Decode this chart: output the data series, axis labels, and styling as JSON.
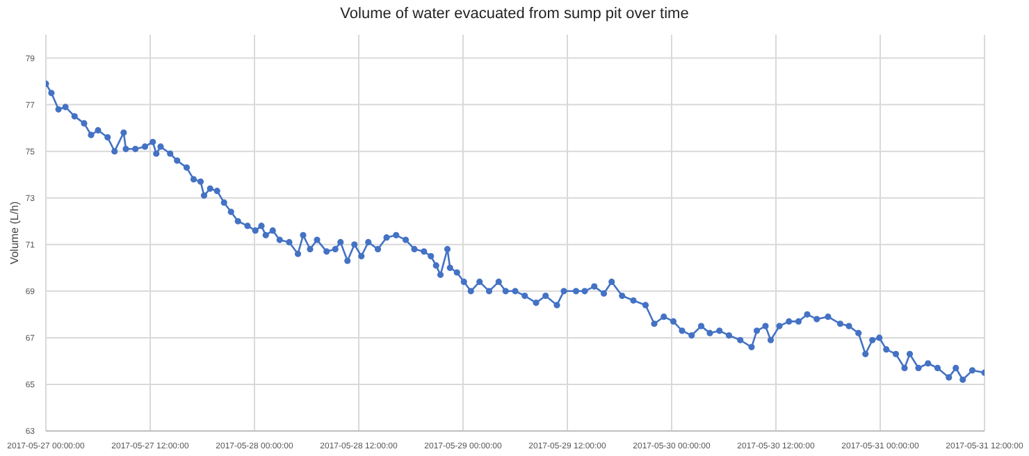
{
  "chart_data": {
    "type": "line",
    "title": "Volume of water evacuated from sump pit over time",
    "ylabel": "Volume (L/h)",
    "x": [
      "2017-05-27T00:00",
      "2017-05-27T00:38",
      "2017-05-27T01:27",
      "2017-05-27T02:15",
      "2017-05-27T03:18",
      "2017-05-27T04:24",
      "2017-05-27T05:12",
      "2017-05-27T06:00",
      "2017-05-27T07:06",
      "2017-05-27T07:54",
      "2017-05-27T08:57",
      "2017-05-27T09:12",
      "2017-05-27T10:18",
      "2017-05-27T11:24",
      "2017-05-27T12:18",
      "2017-05-27T12:42",
      "2017-05-27T13:12",
      "2017-05-27T14:18",
      "2017-05-27T15:06",
      "2017-05-27T16:12",
      "2017-05-27T17:00",
      "2017-05-27T17:48",
      "2017-05-27T18:12",
      "2017-05-27T18:54",
      "2017-05-27T19:42",
      "2017-05-27T20:30",
      "2017-05-27T21:18",
      "2017-05-27T22:06",
      "2017-05-27T23:12",
      "2017-05-28T00:06",
      "2017-05-28T00:48",
      "2017-05-28T01:18",
      "2017-05-28T02:06",
      "2017-05-28T02:54",
      "2017-05-28T04:00",
      "2017-05-28T05:00",
      "2017-05-28T05:36",
      "2017-05-28T06:24",
      "2017-05-28T07:12",
      "2017-05-28T08:18",
      "2017-05-28T09:18",
      "2017-05-28T09:54",
      "2017-05-28T10:42",
      "2017-05-28T11:30",
      "2017-05-28T12:18",
      "2017-05-28T13:06",
      "2017-05-28T14:12",
      "2017-05-28T15:12",
      "2017-05-28T16:18",
      "2017-05-28T17:24",
      "2017-05-28T18:24",
      "2017-05-28T19:30",
      "2017-05-28T20:18",
      "2017-05-28T20:54",
      "2017-05-28T21:24",
      "2017-05-28T22:12",
      "2017-05-28T22:30",
      "2017-05-28T23:18",
      "2017-05-29T00:06",
      "2017-05-29T00:54",
      "2017-05-29T01:54",
      "2017-05-29T03:00",
      "2017-05-29T04:06",
      "2017-05-29T04:54",
      "2017-05-29T06:00",
      "2017-05-29T07:06",
      "2017-05-29T08:24",
      "2017-05-29T09:30",
      "2017-05-29T10:48",
      "2017-05-29T11:36",
      "2017-05-29T13:00",
      "2017-05-29T14:00",
      "2017-05-29T15:06",
      "2017-05-29T16:12",
      "2017-05-29T17:06",
      "2017-05-29T18:18",
      "2017-05-29T19:36",
      "2017-05-29T21:00",
      "2017-05-29T22:00",
      "2017-05-29T23:06",
      "2017-05-30T00:12",
      "2017-05-30T01:12",
      "2017-05-30T02:18",
      "2017-05-30T03:24",
      "2017-05-30T04:24",
      "2017-05-30T05:30",
      "2017-05-30T06:36",
      "2017-05-30T07:54",
      "2017-05-30T09:12",
      "2017-05-30T09:48",
      "2017-05-30T10:48",
      "2017-05-30T11:24",
      "2017-05-30T12:24",
      "2017-05-30T13:30",
      "2017-05-30T14:36",
      "2017-05-30T15:36",
      "2017-05-30T16:42",
      "2017-05-30T18:00",
      "2017-05-30T19:24",
      "2017-05-30T20:24",
      "2017-05-30T21:30",
      "2017-05-30T22:18",
      "2017-05-30T23:06",
      "2017-05-30T23:54",
      "2017-05-31T00:42",
      "2017-05-31T01:48",
      "2017-05-31T02:48",
      "2017-05-31T03:24",
      "2017-05-31T04:24",
      "2017-05-31T05:30",
      "2017-05-31T06:36",
      "2017-05-31T07:54",
      "2017-05-31T08:42",
      "2017-05-31T09:30",
      "2017-05-31T10:36",
      "2017-05-31T12:00"
    ],
    "series": [
      {
        "color": "#4472c4",
        "values": [
          77.9,
          77.5,
          76.8,
          76.9,
          76.5,
          76.2,
          75.7,
          75.9,
          75.6,
          75.0,
          75.8,
          75.1,
          75.1,
          75.2,
          75.4,
          74.9,
          75.2,
          74.9,
          74.6,
          74.3,
          73.8,
          73.7,
          73.1,
          73.4,
          73.3,
          72.8,
          72.4,
          72.0,
          71.8,
          71.6,
          71.8,
          71.4,
          71.6,
          71.2,
          71.1,
          70.6,
          71.4,
          70.8,
          71.2,
          70.7,
          70.8,
          71.1,
          70.3,
          71.0,
          70.5,
          71.1,
          70.8,
          71.3,
          71.4,
          71.2,
          70.8,
          70.7,
          70.5,
          70.1,
          69.7,
          70.8,
          70.0,
          69.8,
          69.4,
          69.0,
          69.4,
          69.0,
          69.4,
          69.0,
          69.0,
          68.8,
          68.5,
          68.8,
          68.4,
          69.0,
          69.0,
          69.0,
          69.2,
          68.9,
          69.4,
          68.8,
          68.6,
          68.4,
          67.6,
          67.9,
          67.7,
          67.3,
          67.1,
          67.5,
          67.2,
          67.3,
          67.1,
          66.9,
          66.6,
          67.3,
          67.5,
          66.9,
          67.5,
          67.7,
          67.7,
          68.0,
          67.8,
          67.9,
          67.6,
          67.5,
          67.2,
          66.3,
          66.9,
          67.0,
          66.5,
          66.3,
          65.7,
          66.3,
          65.7,
          65.9,
          65.7,
          65.3,
          65.7,
          65.2,
          65.6,
          65.5
        ]
      }
    ],
    "xlim": [
      "2017-05-27T00:00",
      "2017-05-31T12:00"
    ],
    "xticks": [
      {
        "value": "2017-05-27T00:00",
        "label": "2017-05-27 00:00:00"
      },
      {
        "value": "2017-05-27T12:00",
        "label": "2017-05-27 12:00:00"
      },
      {
        "value": "2017-05-28T00:00",
        "label": "2017-05-28 00:00:00"
      },
      {
        "value": "2017-05-28T12:00",
        "label": "2017-05-28 12:00:00"
      },
      {
        "value": "2017-05-29T00:00",
        "label": "2017-05-29 00:00:00"
      },
      {
        "value": "2017-05-29T12:00",
        "label": "2017-05-29 12:00:00"
      },
      {
        "value": "2017-05-30T00:00",
        "label": "2017-05-30 00:00:00"
      },
      {
        "value": "2017-05-30T12:00",
        "label": "2017-05-30 12:00:00"
      },
      {
        "value": "2017-05-31T00:00",
        "label": "2017-05-31 00:00:00"
      },
      {
        "value": "2017-05-31T12:00",
        "label": "2017-05-31 12:00:00"
      }
    ],
    "ylim": [
      63,
      80
    ],
    "yticks": [
      63,
      65,
      67,
      69,
      71,
      73,
      75,
      77,
      79
    ],
    "grid": true,
    "marker": "circle",
    "line_style": "solid"
  }
}
